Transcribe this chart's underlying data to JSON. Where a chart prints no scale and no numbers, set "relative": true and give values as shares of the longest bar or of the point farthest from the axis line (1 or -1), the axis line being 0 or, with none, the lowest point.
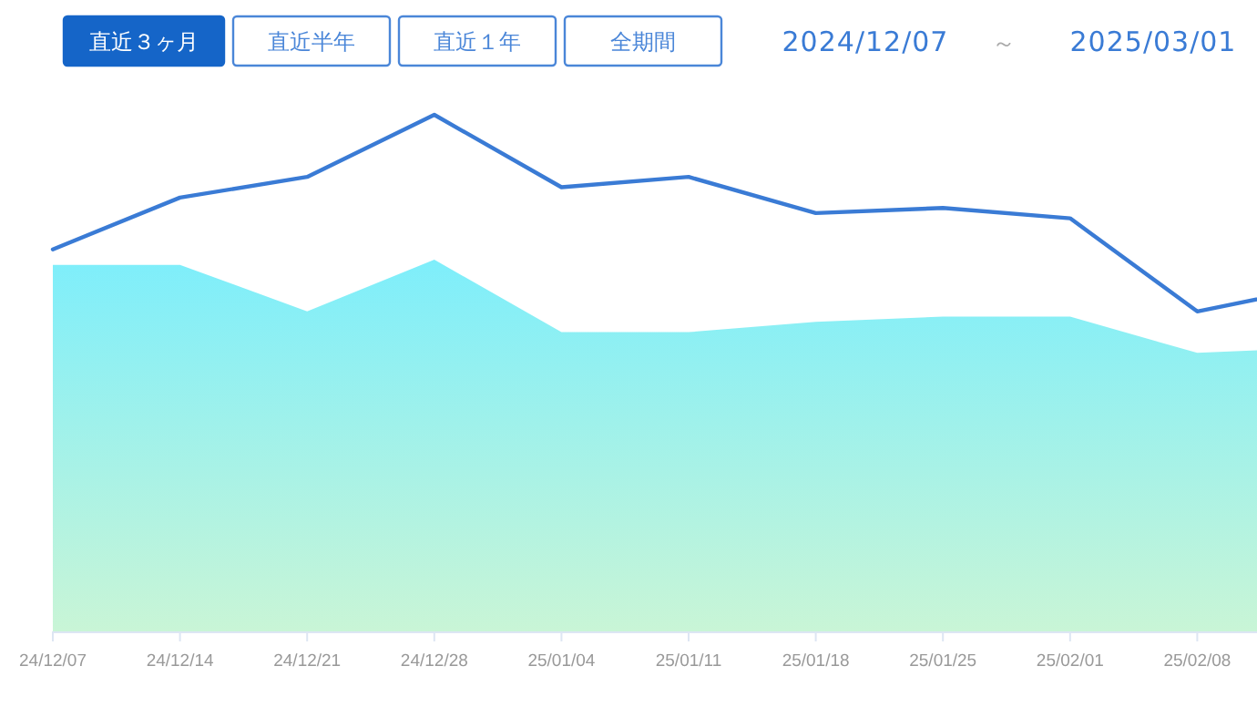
{
  "chart_data": {
    "type": "line",
    "relative": true,
    "categories": [
      "24/12/07",
      "24/12/14",
      "24/12/21",
      "24/12/28",
      "25/01/04",
      "25/01/11",
      "25/01/18",
      "25/01/25",
      "25/02/01",
      "25/02/08",
      null
    ],
    "series": [
      {
        "type": "area",
        "color": "#7eeefb",
        "values": [
          0.71,
          0.71,
          0.62,
          0.72,
          0.58,
          0.58,
          0.6,
          0.61,
          0.61,
          0.54,
          0.55
        ]
      },
      {
        "color": "#3a7bd5",
        "values": [
          0.74,
          0.84,
          0.88,
          1,
          0.86,
          0.88,
          0.81,
          0.82,
          0.8,
          0.62,
          0.67
        ]
      }
    ],
    "annotations": [
      "直近３ヶ月",
      "直近半年",
      "直近１年",
      "全期間",
      "2024/12/07",
      "～",
      "2025/03/01"
    ],
    "marker": "none",
    "line_style": "solid"
  }
}
